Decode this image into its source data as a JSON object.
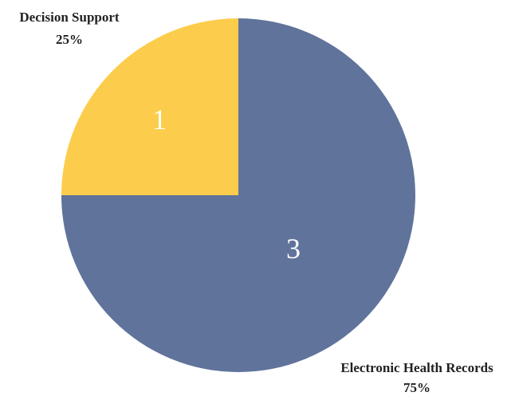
{
  "chart_data": {
    "type": "pie",
    "slices": [
      {
        "label": "Decision Support",
        "value": 1,
        "count_label": "1",
        "percent_label": "25%",
        "color": "#fccd4c"
      },
      {
        "label": "Electronic Health Records",
        "value": 3,
        "count_label": "3",
        "percent_label": "75%",
        "color": "#60739b"
      }
    ],
    "start_angle": "12 o'clock",
    "direction": "counterclockwise",
    "legend": "none",
    "grid": false
  }
}
